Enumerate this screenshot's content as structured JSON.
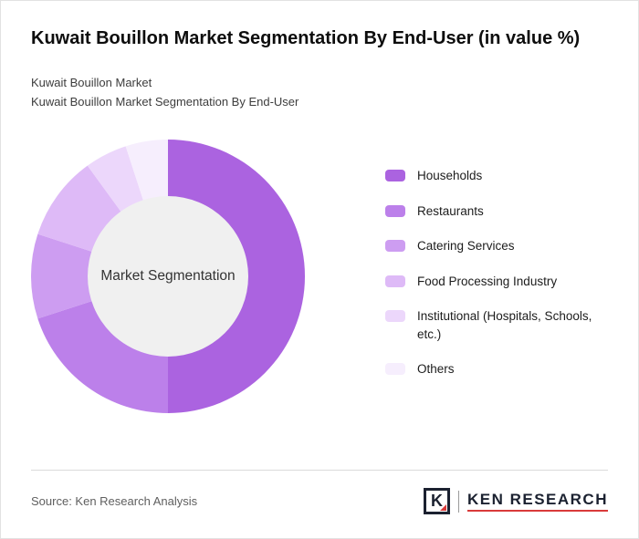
{
  "title": "Kuwait Bouillon Market Segmentation By End-User (in value %)",
  "subtitle1": "Kuwait Bouillon Market",
  "subtitle2": "Kuwait Bouillon Market Segmentation By End-User",
  "center_label": "Market Segmentation",
  "source": "Source: Ken Research Analysis",
  "logo": {
    "letter": "K",
    "text": "KEN RESEARCH"
  },
  "colors": {
    "accent_red": "#d93a3a",
    "logo_navy": "#1b2130",
    "donut_hole": "#f0f0f0"
  },
  "chart_data": {
    "type": "pie",
    "donut": true,
    "title": "Kuwait Bouillon Market Segmentation By End-User (in value %)",
    "center_label": "Market Segmentation",
    "legend_position": "right",
    "start_angle_deg": 0,
    "direction": "clockwise",
    "series": [
      {
        "name": "Households",
        "value": 50,
        "color": "#ab63e0"
      },
      {
        "name": "Restaurants",
        "value": 20,
        "color": "#bc80ea"
      },
      {
        "name": "Catering Services",
        "value": 10,
        "color": "#cd9df1"
      },
      {
        "name": "Food Processing Industry",
        "value": 10,
        "color": "#debaf7"
      },
      {
        "name": "Institutional (Hospitals, Schools, etc.)",
        "value": 5,
        "color": "#ecd7fb"
      },
      {
        "name": "Others",
        "value": 5,
        "color": "#f6eefd"
      }
    ]
  }
}
